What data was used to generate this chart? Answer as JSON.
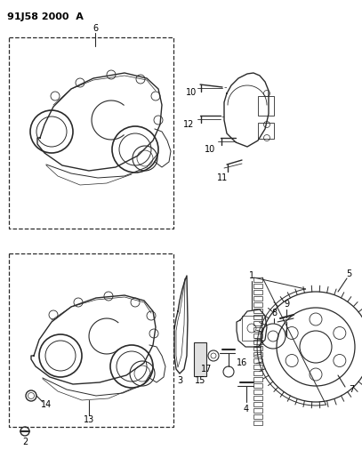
{
  "title": "91J58 2000  A",
  "bg_color": "#ffffff",
  "line_color": "#2a2a2a",
  "text_color": "#000000",
  "fig_width": 4.07,
  "fig_height": 5.33,
  "dpi": 100
}
